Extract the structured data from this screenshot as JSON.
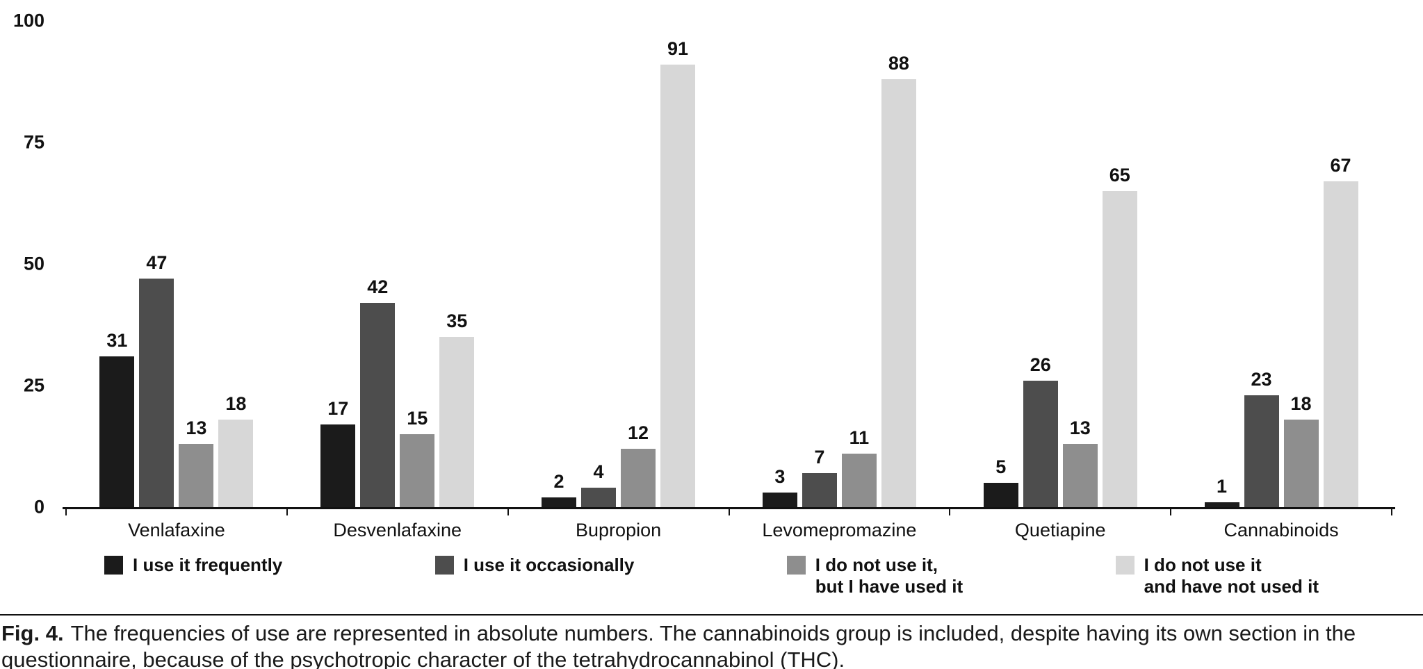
{
  "chart_data": {
    "type": "bar",
    "categories": [
      "Venlafaxine",
      "Desvenlafaxine",
      "Bupropion",
      "Levomepromazine",
      "Quetiapine",
      "Cannabinoids"
    ],
    "series": [
      {
        "name": "I use it frequently",
        "color": "#1b1b1b",
        "values": [
          31,
          17,
          2,
          3,
          5,
          1
        ]
      },
      {
        "name": "I use it occasionally",
        "color": "#4d4d4d",
        "values": [
          47,
          42,
          4,
          7,
          26,
          23
        ]
      },
      {
        "name": "I do not use it,\nbut I have used it",
        "color": "#8e8e8e",
        "values": [
          13,
          15,
          12,
          11,
          13,
          18
        ]
      },
      {
        "name": "I do not use it\nand have not used it",
        "color": "#d7d7d7",
        "values": [
          18,
          35,
          91,
          88,
          65,
          67
        ]
      }
    ],
    "title": "",
    "xlabel": "",
    "ylabel": "",
    "ylim": [
      0,
      100
    ],
    "yticks": [
      0,
      25,
      50,
      75,
      100
    ],
    "grid": false,
    "legend_position": "bottom",
    "value_labels": true
  },
  "caption": {
    "prefix": "Fig. 4.",
    "text": "The frequencies of use are represented in absolute numbers. The cannabinoids group is included, despite having its own section in the questionnaire, because of the psychotropic character of the tetrahydrocannabinol (THC)."
  }
}
